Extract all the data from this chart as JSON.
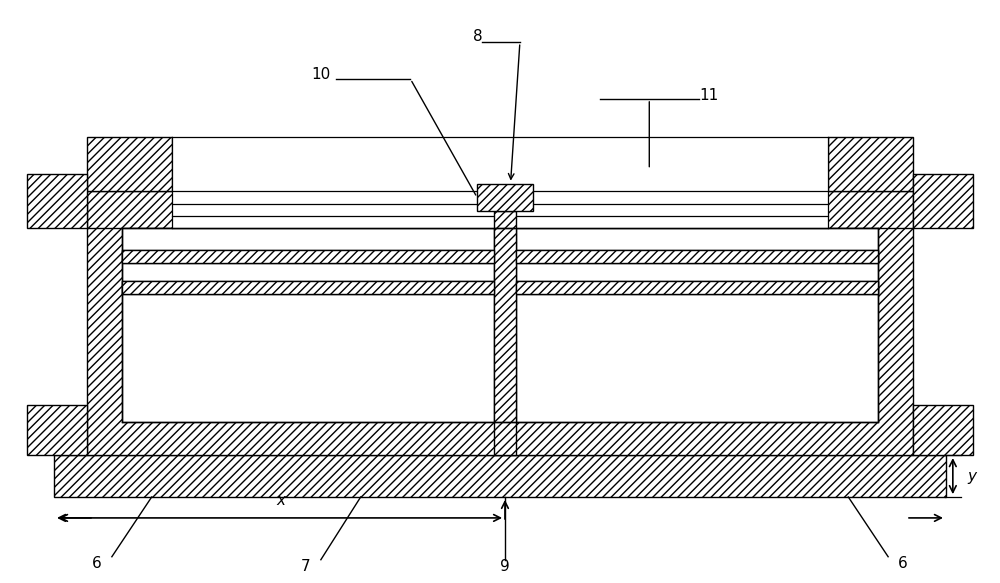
{
  "bg_color": "#ffffff",
  "line_color": "#000000",
  "hatch_pattern": "////",
  "fig_width": 10.0,
  "fig_height": 5.83,
  "dpi": 100,
  "labels": {
    "6_left": "6",
    "6_right": "6",
    "7": "7",
    "8": "8",
    "9": "9",
    "10": "10",
    "11": "11",
    "x": "x",
    "y": "y"
  }
}
